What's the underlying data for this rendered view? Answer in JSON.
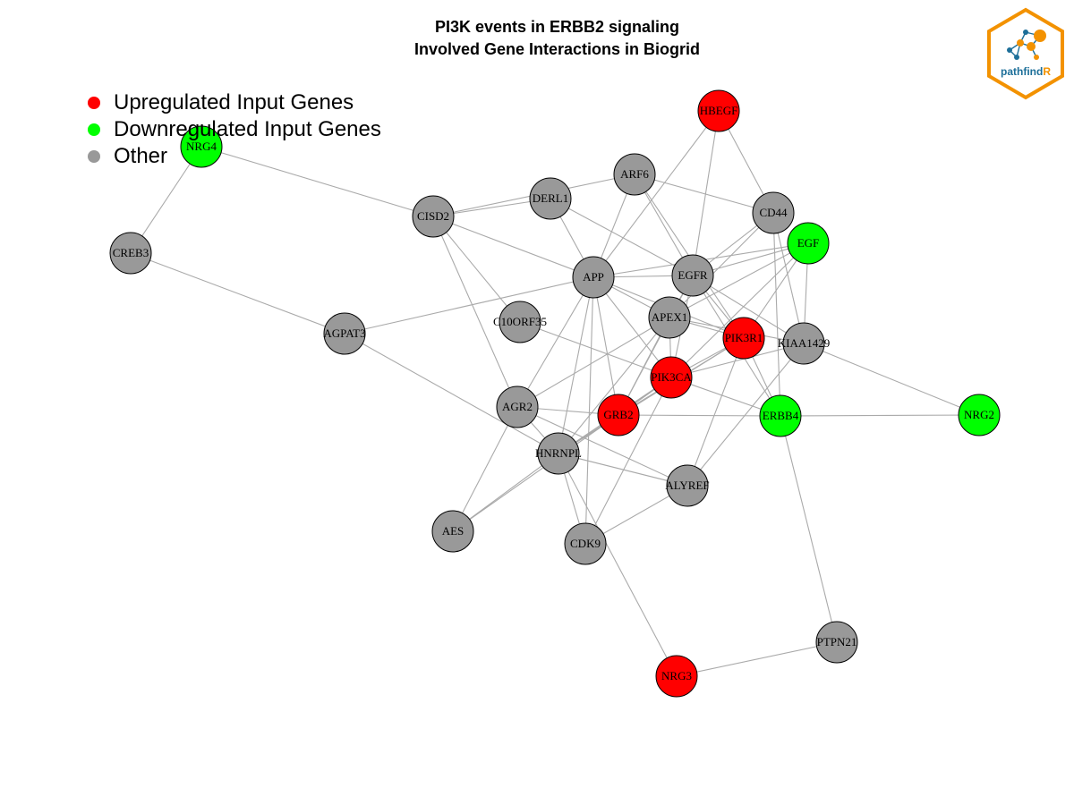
{
  "title": {
    "line1": "PI3K events in ERBB2 signaling",
    "line2": "Involved Gene Interactions in Biogrid"
  },
  "legend": [
    {
      "label": "Upregulated Input Genes",
      "color": "#ff0000"
    },
    {
      "label": "Downregulated Input Genes",
      "color": "#00ff00"
    },
    {
      "label": "Other",
      "color": "#999999"
    }
  ],
  "colors": {
    "up": "#ff0000",
    "down": "#00ff00",
    "other": "#999999",
    "edge": "#aaaaaa",
    "logo_orange": "#f39200",
    "logo_blue": "#1d6f99"
  },
  "logo": {
    "text_main": "pathfind",
    "text_accent": "R",
    "icon": "network-hexagon-icon"
  },
  "nodes": [
    {
      "id": "HBEGF",
      "status": "up"
    },
    {
      "id": "NRG4",
      "status": "down"
    },
    {
      "id": "ARF6",
      "status": "other"
    },
    {
      "id": "DERL1",
      "status": "other"
    },
    {
      "id": "CISD2",
      "status": "other"
    },
    {
      "id": "CD44",
      "status": "other"
    },
    {
      "id": "EGF",
      "status": "down"
    },
    {
      "id": "CREB3",
      "status": "other"
    },
    {
      "id": "APP",
      "status": "other"
    },
    {
      "id": "EGFR",
      "status": "other"
    },
    {
      "id": "APEX1",
      "status": "other"
    },
    {
      "id": "C10ORF35",
      "status": "other"
    },
    {
      "id": "AGPAT3",
      "status": "other"
    },
    {
      "id": "PIK3R1",
      "status": "up"
    },
    {
      "id": "KIAA1429",
      "status": "other"
    },
    {
      "id": "PIK3CA",
      "status": "up"
    },
    {
      "id": "AGR2",
      "status": "other"
    },
    {
      "id": "GRB2",
      "status": "up"
    },
    {
      "id": "ERBB4",
      "status": "down"
    },
    {
      "id": "NRG2",
      "status": "down"
    },
    {
      "id": "HNRNPL",
      "status": "other"
    },
    {
      "id": "ALYREF",
      "status": "other"
    },
    {
      "id": "AES",
      "status": "other"
    },
    {
      "id": "CDK9",
      "status": "other"
    },
    {
      "id": "PTPN21",
      "status": "other"
    },
    {
      "id": "NRG3",
      "status": "up"
    }
  ],
  "edges": [
    [
      "NRG4",
      "CREB3"
    ],
    [
      "NRG4",
      "CISD2"
    ],
    [
      "CREB3",
      "AGPAT3"
    ],
    [
      "HBEGF",
      "APP"
    ],
    [
      "HBEGF",
      "EGFR"
    ],
    [
      "HBEGF",
      "CD44"
    ],
    [
      "ARF6",
      "CD44"
    ],
    [
      "ARF6",
      "APP"
    ],
    [
      "ARF6",
      "EGFR"
    ],
    [
      "ARF6",
      "PIK3R1"
    ],
    [
      "ARF6",
      "CISD2"
    ],
    [
      "DERL1",
      "CISD2"
    ],
    [
      "DERL1",
      "APP"
    ],
    [
      "DERL1",
      "EGFR"
    ],
    [
      "CISD2",
      "APP"
    ],
    [
      "CISD2",
      "C10ORF35"
    ],
    [
      "CISD2",
      "AGR2"
    ],
    [
      "CD44",
      "EGFR"
    ],
    [
      "CD44",
      "ERBB4"
    ],
    [
      "CD44",
      "KIAA1429"
    ],
    [
      "CD44",
      "APEX1"
    ],
    [
      "EGF",
      "EGFR"
    ],
    [
      "EGF",
      "APP"
    ],
    [
      "EGF",
      "KIAA1429"
    ],
    [
      "EGF",
      "APEX1"
    ],
    [
      "EGF",
      "PIK3CA"
    ],
    [
      "EGF",
      "PIK3R1"
    ],
    [
      "APP",
      "EGFR"
    ],
    [
      "APP",
      "APEX1"
    ],
    [
      "APP",
      "PIK3R1"
    ],
    [
      "APP",
      "PIK3CA"
    ],
    [
      "APP",
      "AGPAT3"
    ],
    [
      "APP",
      "AGR2"
    ],
    [
      "APP",
      "GRB2"
    ],
    [
      "APP",
      "HNRNPL"
    ],
    [
      "APP",
      "CDK9"
    ],
    [
      "EGFR",
      "APEX1"
    ],
    [
      "EGFR",
      "PIK3R1"
    ],
    [
      "EGFR",
      "KIAA1429"
    ],
    [
      "EGFR",
      "PIK3CA"
    ],
    [
      "EGFR",
      "ERBB4"
    ],
    [
      "EGFR",
      "GRB2"
    ],
    [
      "APEX1",
      "PIK3R1"
    ],
    [
      "APEX1",
      "KIAA1429"
    ],
    [
      "APEX1",
      "PIK3CA"
    ],
    [
      "APEX1",
      "GRB2"
    ],
    [
      "APEX1",
      "HNRNPL"
    ],
    [
      "APEX1",
      "AGR2"
    ],
    [
      "C10ORF35",
      "PIK3CA"
    ],
    [
      "AGPAT3",
      "HNRNPL"
    ],
    [
      "PIK3R1",
      "PIK3CA"
    ],
    [
      "PIK3R1",
      "GRB2"
    ],
    [
      "PIK3R1",
      "ERBB4"
    ],
    [
      "PIK3R1",
      "ALYREF"
    ],
    [
      "PIK3R1",
      "HNRNPL"
    ],
    [
      "KIAA1429",
      "NRG2"
    ],
    [
      "KIAA1429",
      "ALYREF"
    ],
    [
      "KIAA1429",
      "PIK3CA"
    ],
    [
      "PIK3CA",
      "GRB2"
    ],
    [
      "PIK3CA",
      "ERBB4"
    ],
    [
      "PIK3CA",
      "HNRNPL"
    ],
    [
      "PIK3CA",
      "CDK9"
    ],
    [
      "PIK3CA",
      "AES"
    ],
    [
      "AGR2",
      "GRB2"
    ],
    [
      "AGR2",
      "AES"
    ],
    [
      "AGR2",
      "HNRNPL"
    ],
    [
      "GRB2",
      "ERBB4"
    ],
    [
      "GRB2",
      "HNRNPL"
    ],
    [
      "ERBB4",
      "NRG2"
    ],
    [
      "ERBB4",
      "PTPN21"
    ],
    [
      "HNRNPL",
      "ALYREF"
    ],
    [
      "HNRNPL",
      "AES"
    ],
    [
      "HNRNPL",
      "CDK9"
    ],
    [
      "HNRNPL",
      "NRG3"
    ],
    [
      "ALYREF",
      "CDK9"
    ],
    [
      "ALYREF",
      "AGR2"
    ],
    [
      "PTPN21",
      "NRG3"
    ]
  ]
}
